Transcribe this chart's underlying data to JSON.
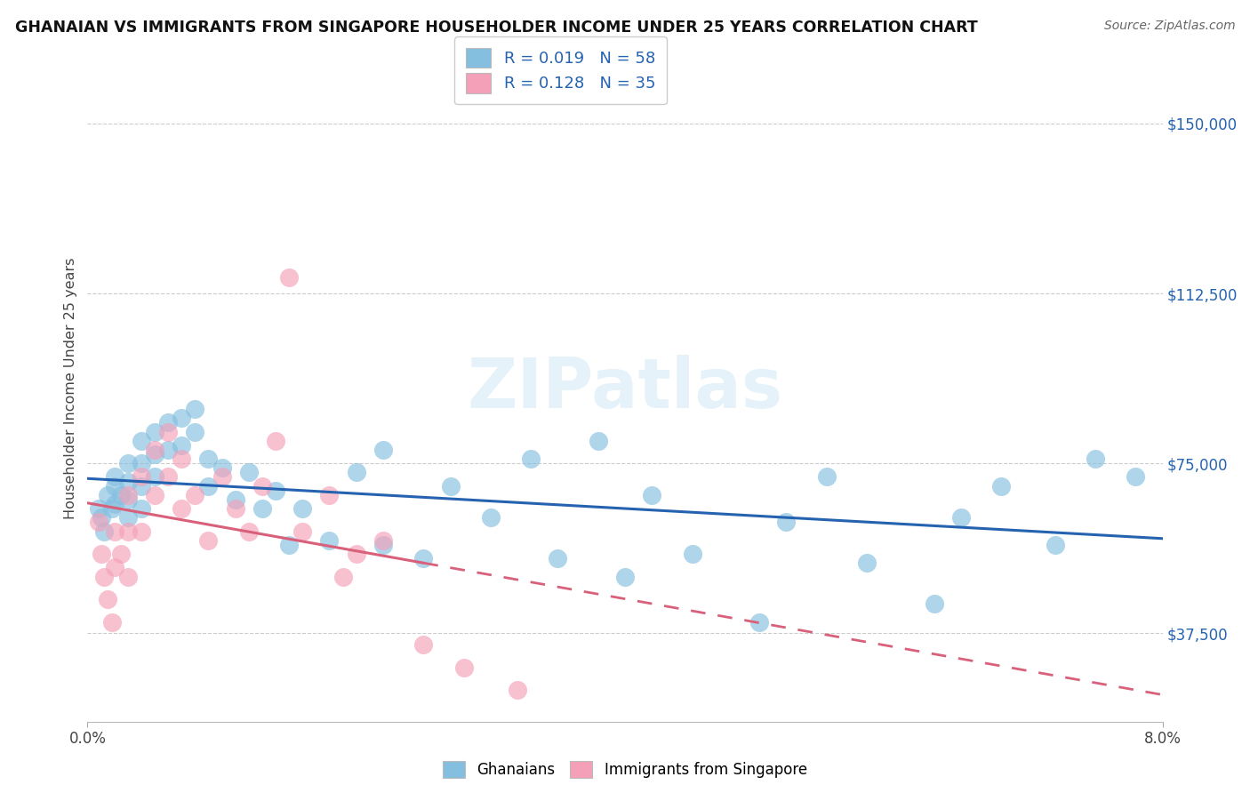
{
  "title": "GHANAIAN VS IMMIGRANTS FROM SINGAPORE HOUSEHOLDER INCOME UNDER 25 YEARS CORRELATION CHART",
  "source": "Source: ZipAtlas.com",
  "ylabel": "Householder Income Under 25 years",
  "yticks": [
    37500,
    75000,
    112500,
    150000
  ],
  "ytick_labels": [
    "$37,500",
    "$75,000",
    "$112,500",
    "$150,000"
  ],
  "xmin": 0.0,
  "xmax": 0.08,
  "ymin": 18000,
  "ymax": 165000,
  "legend_r1": "R = 0.019",
  "legend_n1": "N = 58",
  "legend_r2": "R = 0.128",
  "legend_n2": "N = 35",
  "color_blue": "#85bfdf",
  "color_pink": "#f4a0b8",
  "line_blue": "#2563b0",
  "line_pink": "#d9607a",
  "watermark": "ZIPatlas",
  "ghanaian_x": [
    0.0008,
    0.001,
    0.0012,
    0.0015,
    0.0018,
    0.002,
    0.002,
    0.002,
    0.0025,
    0.003,
    0.003,
    0.003,
    0.003,
    0.004,
    0.004,
    0.004,
    0.004,
    0.005,
    0.005,
    0.005,
    0.006,
    0.006,
    0.007,
    0.007,
    0.008,
    0.008,
    0.009,
    0.009,
    0.01,
    0.011,
    0.012,
    0.013,
    0.014,
    0.015,
    0.016,
    0.018,
    0.02,
    0.022,
    0.022,
    0.025,
    0.027,
    0.03,
    0.033,
    0.035,
    0.038,
    0.04,
    0.042,
    0.045,
    0.05,
    0.052,
    0.055,
    0.058,
    0.063,
    0.065,
    0.068,
    0.072,
    0.075,
    0.078
  ],
  "ghanaian_y": [
    65000,
    63000,
    60000,
    68000,
    65000,
    70000,
    66000,
    72000,
    68000,
    75000,
    71000,
    67000,
    63000,
    80000,
    75000,
    70000,
    65000,
    82000,
    77000,
    72000,
    84000,
    78000,
    85000,
    79000,
    87000,
    82000,
    76000,
    70000,
    74000,
    67000,
    73000,
    65000,
    69000,
    57000,
    65000,
    58000,
    73000,
    57000,
    78000,
    54000,
    70000,
    63000,
    76000,
    54000,
    80000,
    50000,
    68000,
    55000,
    40000,
    62000,
    72000,
    53000,
    44000,
    63000,
    70000,
    57000,
    76000,
    72000
  ],
  "singapore_x": [
    0.0008,
    0.001,
    0.0012,
    0.0015,
    0.0018,
    0.002,
    0.002,
    0.0025,
    0.003,
    0.003,
    0.003,
    0.004,
    0.004,
    0.005,
    0.005,
    0.006,
    0.006,
    0.007,
    0.007,
    0.008,
    0.009,
    0.01,
    0.011,
    0.012,
    0.013,
    0.014,
    0.015,
    0.016,
    0.018,
    0.019,
    0.02,
    0.022,
    0.025,
    0.028,
    0.032
  ],
  "singapore_y": [
    62000,
    55000,
    50000,
    45000,
    40000,
    60000,
    52000,
    55000,
    68000,
    60000,
    50000,
    72000,
    60000,
    78000,
    68000,
    82000,
    72000,
    76000,
    65000,
    68000,
    58000,
    72000,
    65000,
    60000,
    70000,
    80000,
    116000,
    60000,
    68000,
    50000,
    55000,
    58000,
    35000,
    30000,
    25000
  ]
}
